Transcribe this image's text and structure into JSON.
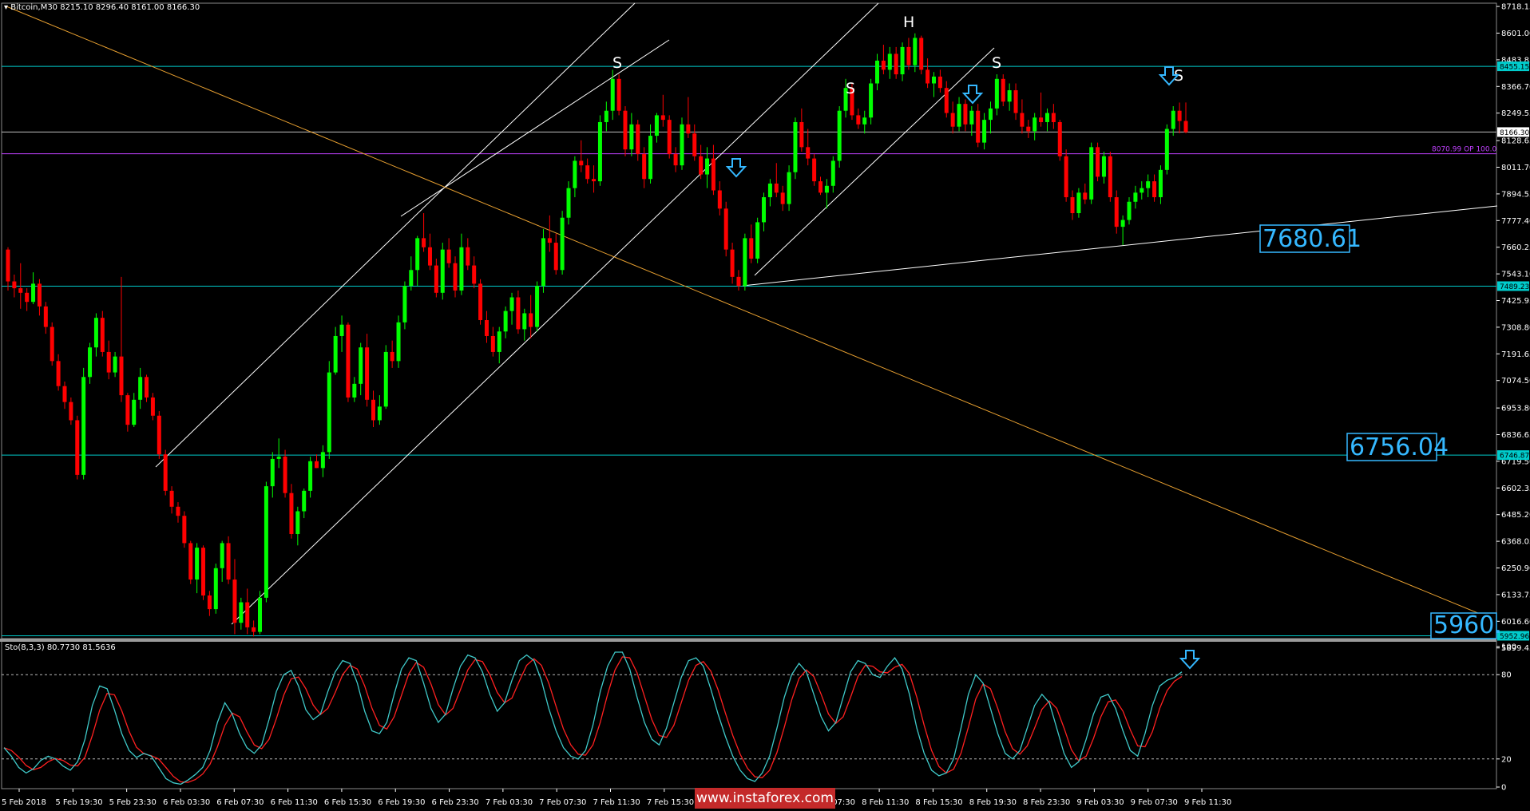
{
  "header": {
    "symbol": "Bitcoin,M30",
    "ohlc": "8215.10 8296.40 8161.00 8166.30",
    "menu_glyph": "▾"
  },
  "stoch_header": "Sto(8,3,3) 80.7730 81.5636",
  "watermark": "www.instaforex.com",
  "colors": {
    "bull": "#00ff00",
    "bear": "#ff0000",
    "hline": "#00cccc",
    "trend": "#ffffff",
    "downtrend": "#e8a030",
    "op_line": "#c040ff",
    "callout": "#35b8ff",
    "stoch_main": "#3fc9c9",
    "stoch_signal": "#ff2020"
  },
  "chart_data": {
    "type": "candlestick",
    "price_axis": [
      "8718.15",
      "8601.00",
      "8483.85",
      "8366.70",
      "8249.55",
      "8128.65",
      "8011.70",
      "7894.55",
      "7777.40",
      "7660.25",
      "7543.10",
      "7425.95",
      "7308.80",
      "7191.65",
      "7074.50",
      "6953.80",
      "6836.65",
      "6719.50",
      "6602.35",
      "6485.20",
      "6368.05",
      "6250.90",
      "6133.75",
      "6016.60",
      "5899.45"
    ],
    "time_axis": [
      "5 Feb 2018",
      "5 Feb 19:30",
      "5 Feb 23:30",
      "6 Feb 03:30",
      "6 Feb 07:30",
      "6 Feb 11:30",
      "6 Feb 15:30",
      "6 Feb 19:30",
      "6 Feb 23:30",
      "7 Feb 03:30",
      "7 Feb 07:30",
      "7 Feb 11:30",
      "7 Feb 15:30",
      "7 Feb 19:30",
      "7 Feb 23:30",
      "8 Feb 07:30",
      "8 Feb 11:30",
      "8 Feb 15:30",
      "8 Feb 19:30",
      "8 Feb 23:30",
      "9 Feb 03:30",
      "9 Feb 07:30",
      "9 Feb 11:30"
    ],
    "candles": [
      [
        7650,
        7660,
        7470,
        7510
      ],
      [
        7510,
        7540,
        7440,
        7480
      ],
      [
        7480,
        7590,
        7390,
        7460
      ],
      [
        7460,
        7480,
        7380,
        7420
      ],
      [
        7420,
        7550,
        7410,
        7500
      ],
      [
        7500,
        7520,
        7360,
        7400
      ],
      [
        7400,
        7420,
        7280,
        7310
      ],
      [
        7310,
        7330,
        7140,
        7160
      ],
      [
        7160,
        7190,
        7030,
        7050
      ],
      [
        7050,
        7070,
        6950,
        6980
      ],
      [
        6980,
        7000,
        6880,
        6900
      ],
      [
        6900,
        6920,
        6640,
        6660
      ],
      [
        6660,
        7130,
        6640,
        7090
      ],
      [
        7090,
        7240,
        7060,
        7220
      ],
      [
        7220,
        7370,
        7180,
        7350
      ],
      [
        7350,
        7380,
        7180,
        7200
      ],
      [
        7200,
        7250,
        7080,
        7110
      ],
      [
        7110,
        7200,
        7090,
        7180
      ],
      [
        7180,
        7530,
        6980,
        7010
      ],
      [
        7010,
        7020,
        6850,
        6880
      ],
      [
        6880,
        7020,
        6870,
        6990
      ],
      [
        6990,
        7130,
        6950,
        7090
      ],
      [
        7090,
        7100,
        6980,
        7000
      ],
      [
        7000,
        7020,
        6900,
        6920
      ],
      [
        6920,
        6940,
        6730,
        6750
      ],
      [
        6750,
        6770,
        6570,
        6590
      ],
      [
        6590,
        6610,
        6490,
        6520
      ],
      [
        6520,
        6540,
        6450,
        6480
      ],
      [
        6480,
        6500,
        6340,
        6360
      ],
      [
        6360,
        6370,
        6180,
        6200
      ],
      [
        6200,
        6360,
        6140,
        6340
      ],
      [
        6340,
        6350,
        6110,
        6130
      ],
      [
        6130,
        6150,
        6040,
        6070
      ],
      [
        6070,
        6270,
        6050,
        6250
      ],
      [
        6250,
        6370,
        6190,
        6360
      ],
      [
        6360,
        6390,
        6180,
        6200
      ],
      [
        6200,
        6290,
        5960,
        6010
      ],
      [
        6010,
        6120,
        5980,
        6100
      ],
      [
        6100,
        6160,
        5960,
        5990
      ],
      [
        5990,
        6020,
        5950,
        5970
      ],
      [
        5970,
        6150,
        5960,
        6120
      ],
      [
        6120,
        6630,
        6100,
        6610
      ],
      [
        6610,
        6760,
        6560,
        6730
      ],
      [
        6730,
        6820,
        6690,
        6740
      ],
      [
        6740,
        6770,
        6560,
        6580
      ],
      [
        6580,
        6620,
        6380,
        6400
      ],
      [
        6400,
        6520,
        6350,
        6500
      ],
      [
        6500,
        6600,
        6470,
        6590
      ],
      [
        6590,
        6740,
        6560,
        6720
      ],
      [
        6720,
        6750,
        6690,
        6690
      ],
      [
        6690,
        6790,
        6650,
        6760
      ],
      [
        6760,
        7160,
        6730,
        7110
      ],
      [
        7110,
        7310,
        7100,
        7270
      ],
      [
        7270,
        7360,
        7200,
        7320
      ],
      [
        7320,
        7330,
        6980,
        7000
      ],
      [
        7000,
        7090,
        6980,
        7060
      ],
      [
        7060,
        7240,
        7010,
        7220
      ],
      [
        7220,
        7280,
        6960,
        6990
      ],
      [
        6990,
        7030,
        6870,
        6900
      ],
      [
        6900,
        7010,
        6880,
        6960
      ],
      [
        6960,
        7230,
        6950,
        7200
      ],
      [
        7200,
        7250,
        7130,
        7160
      ],
      [
        7160,
        7360,
        7130,
        7330
      ],
      [
        7330,
        7510,
        7300,
        7490
      ],
      [
        7490,
        7620,
        7470,
        7560
      ],
      [
        7560,
        7710,
        7490,
        7700
      ],
      [
        7700,
        7810,
        7640,
        7660
      ],
      [
        7660,
        7720,
        7560,
        7580
      ],
      [
        7580,
        7610,
        7440,
        7460
      ],
      [
        7460,
        7680,
        7430,
        7650
      ],
      [
        7650,
        7700,
        7570,
        7590
      ],
      [
        7590,
        7620,
        7440,
        7470
      ],
      [
        7470,
        7720,
        7450,
        7660
      ],
      [
        7660,
        7700,
        7560,
        7580
      ],
      [
        7580,
        7620,
        7480,
        7500
      ],
      [
        7500,
        7520,
        7320,
        7340
      ],
      [
        7340,
        7380,
        7240,
        7270
      ],
      [
        7270,
        7310,
        7180,
        7200
      ],
      [
        7200,
        7310,
        7150,
        7290
      ],
      [
        7290,
        7400,
        7260,
        7380
      ],
      [
        7380,
        7460,
        7320,
        7440
      ],
      [
        7440,
        7470,
        7280,
        7300
      ],
      [
        7300,
        7390,
        7250,
        7370
      ],
      [
        7370,
        7450,
        7260,
        7310
      ],
      [
        7310,
        7510,
        7290,
        7490
      ],
      [
        7490,
        7740,
        7460,
        7700
      ],
      [
        7700,
        7800,
        7640,
        7680
      ],
      [
        7680,
        7720,
        7540,
        7560
      ],
      [
        7560,
        7820,
        7540,
        7790
      ],
      [
        7790,
        7950,
        7760,
        7920
      ],
      [
        7920,
        8060,
        7880,
        8040
      ],
      [
        8040,
        8130,
        7990,
        8020
      ],
      [
        8020,
        8050,
        7940,
        7960
      ],
      [
        7960,
        8020,
        7900,
        7950
      ],
      [
        7950,
        8240,
        7930,
        8210
      ],
      [
        8210,
        8300,
        8170,
        8260
      ],
      [
        8260,
        8440,
        8220,
        8400
      ],
      [
        8400,
        8420,
        8240,
        8260
      ],
      [
        8260,
        8280,
        8060,
        8090
      ],
      [
        8090,
        8250,
        8060,
        8200
      ],
      [
        8200,
        8220,
        8040,
        8070
      ],
      [
        8070,
        8100,
        7920,
        7960
      ],
      [
        7960,
        8200,
        7940,
        8150
      ],
      [
        8150,
        8250,
        8120,
        8240
      ],
      [
        8240,
        8330,
        8190,
        8220
      ],
      [
        8220,
        8240,
        8050,
        8070
      ],
      [
        8070,
        8100,
        7990,
        8020
      ],
      [
        8020,
        8230,
        8000,
        8200
      ],
      [
        8200,
        8320,
        8140,
        8160
      ],
      [
        8160,
        8200,
        8040,
        8060
      ],
      [
        8060,
        8110,
        7960,
        7980
      ],
      [
        7980,
        8100,
        7920,
        8050
      ],
      [
        8050,
        8110,
        7890,
        7910
      ],
      [
        7910,
        7950,
        7800,
        7830
      ],
      [
        7830,
        7860,
        7620,
        7650
      ],
      [
        7650,
        7680,
        7500,
        7530
      ],
      [
        7530,
        7560,
        7470,
        7490
      ],
      [
        7490,
        7720,
        7470,
        7700
      ],
      [
        7700,
        7760,
        7590,
        7610
      ],
      [
        7610,
        7790,
        7590,
        7770
      ],
      [
        7770,
        7900,
        7730,
        7880
      ],
      [
        7880,
        7960,
        7840,
        7940
      ],
      [
        7940,
        8030,
        7880,
        7900
      ],
      [
        7900,
        7930,
        7820,
        7850
      ],
      [
        7850,
        8020,
        7820,
        7990
      ],
      [
        7990,
        8230,
        7960,
        8210
      ],
      [
        8210,
        8270,
        8080,
        8100
      ],
      [
        8100,
        8180,
        8020,
        8050
      ],
      [
        8050,
        8070,
        7930,
        7950
      ],
      [
        7950,
        7970,
        7890,
        7900
      ],
      [
        7900,
        7960,
        7830,
        7930
      ],
      [
        7930,
        8060,
        7900,
        8040
      ],
      [
        8040,
        8280,
        8010,
        8260
      ],
      [
        8260,
        8400,
        8230,
        8360
      ],
      [
        8360,
        8380,
        8220,
        8240
      ],
      [
        8240,
        8270,
        8180,
        8200
      ],
      [
        8200,
        8260,
        8160,
        8230
      ],
      [
        8230,
        8400,
        8200,
        8380
      ],
      [
        8380,
        8510,
        8350,
        8480
      ],
      [
        8480,
        8550,
        8420,
        8440
      ],
      [
        8440,
        8540,
        8400,
        8510
      ],
      [
        8510,
        8540,
        8400,
        8420
      ],
      [
        8420,
        8560,
        8390,
        8540
      ],
      [
        8540,
        8580,
        8440,
        8460
      ],
      [
        8460,
        8600,
        8430,
        8580
      ],
      [
        8580,
        8590,
        8420,
        8440
      ],
      [
        8440,
        8490,
        8360,
        8380
      ],
      [
        8380,
        8430,
        8320,
        8410
      ],
      [
        8410,
        8440,
        8340,
        8360
      ],
      [
        8360,
        8390,
        8230,
        8250
      ],
      [
        8250,
        8300,
        8160,
        8190
      ],
      [
        8190,
        8320,
        8170,
        8290
      ],
      [
        8290,
        8310,
        8170,
        8200
      ],
      [
        8200,
        8280,
        8150,
        8260
      ],
      [
        8260,
        8290,
        8100,
        8120
      ],
      [
        8120,
        8250,
        8090,
        8220
      ],
      [
        8220,
        8300,
        8160,
        8270
      ],
      [
        8270,
        8420,
        8240,
        8400
      ],
      [
        8400,
        8420,
        8280,
        8300
      ],
      [
        8300,
        8380,
        8260,
        8350
      ],
      [
        8350,
        8380,
        8220,
        8250
      ],
      [
        8250,
        8310,
        8160,
        8190
      ],
      [
        8190,
        8220,
        8140,
        8170
      ],
      [
        8170,
        8250,
        8130,
        8230
      ],
      [
        8230,
        8340,
        8190,
        8210
      ],
      [
        8210,
        8270,
        8170,
        8250
      ],
      [
        8250,
        8290,
        8180,
        8210
      ],
      [
        8210,
        8220,
        8040,
        8060
      ],
      [
        8060,
        8090,
        7860,
        7880
      ],
      [
        7880,
        7910,
        7780,
        7810
      ],
      [
        7810,
        7920,
        7790,
        7900
      ],
      [
        7900,
        7940,
        7850,
        7870
      ],
      [
        7870,
        8120,
        7850,
        8100
      ],
      [
        8100,
        8120,
        7950,
        7970
      ],
      [
        7970,
        8080,
        7940,
        8060
      ],
      [
        8060,
        8080,
        7860,
        7880
      ],
      [
        7880,
        7910,
        7720,
        7750
      ],
      [
        7750,
        7800,
        7670,
        7780
      ],
      [
        7780,
        7880,
        7760,
        7860
      ],
      [
        7860,
        7930,
        7830,
        7900
      ],
      [
        7900,
        7950,
        7870,
        7920
      ],
      [
        7920,
        7980,
        7880,
        7950
      ],
      [
        7950,
        7980,
        7860,
        7880
      ],
      [
        7880,
        8020,
        7850,
        8000
      ],
      [
        8000,
        8200,
        7980,
        8180
      ],
      [
        8180,
        8280,
        8150,
        8260
      ],
      [
        8260,
        8296,
        8161,
        8215
      ],
      [
        8215,
        8296.4,
        8161,
        8166.3
      ]
    ],
    "horizontal_levels": [
      {
        "price": 8455.15,
        "label": "8455.15"
      },
      {
        "price": 8166.3,
        "label": "8166.30"
      },
      {
        "price": 8070.99,
        "label": "8070.99 OP 100.0"
      },
      {
        "price": 7489.23,
        "label": "7489.23"
      },
      {
        "price": 6746.87,
        "label": "6746.87"
      },
      {
        "price": 5952.96,
        "label": "5952.96"
      }
    ],
    "callouts": [
      "7680.61",
      "6756.04",
      "5960."
    ],
    "pattern_labels": [
      "S",
      "H",
      "S",
      "S",
      "S"
    ],
    "stochastic": {
      "params": "Sto(8,3,3)",
      "main": 80.773,
      "signal": 81.5636,
      "levels": [
        80,
        20
      ],
      "axis": [
        "100",
        "80",
        "20",
        "0"
      ],
      "main_series": [
        28,
        22,
        14,
        10,
        13,
        19,
        22,
        20,
        15,
        12,
        18,
        34,
        58,
        72,
        70,
        55,
        38,
        26,
        21,
        24,
        22,
        14,
        6,
        3,
        2,
        5,
        9,
        14,
        26,
        46,
        60,
        52,
        38,
        28,
        24,
        30,
        48,
        68,
        80,
        83,
        72,
        55,
        48,
        52,
        68,
        82,
        90,
        88,
        74,
        54,
        40,
        38,
        46,
        66,
        84,
        92,
        90,
        74,
        56,
        46,
        52,
        70,
        86,
        94,
        92,
        82,
        66,
        54,
        60,
        76,
        90,
        94,
        90,
        76,
        56,
        40,
        28,
        22,
        20,
        26,
        44,
        68,
        86,
        96,
        96,
        84,
        64,
        46,
        34,
        30,
        42,
        60,
        78,
        90,
        92,
        86,
        70,
        52,
        36,
        22,
        12,
        6,
        4,
        10,
        22,
        42,
        64,
        80,
        88,
        82,
        66,
        50,
        40,
        46,
        64,
        82,
        90,
        88,
        80,
        78,
        86,
        92,
        84,
        66,
        42,
        24,
        12,
        8,
        10,
        20,
        42,
        66,
        80,
        74,
        56,
        38,
        24,
        20,
        26,
        42,
        58,
        66,
        60,
        42,
        24,
        14,
        18,
        34,
        52,
        64,
        66,
        56,
        40,
        26,
        22,
        38,
        58,
        72,
        76,
        78,
        82
      ]
    }
  }
}
